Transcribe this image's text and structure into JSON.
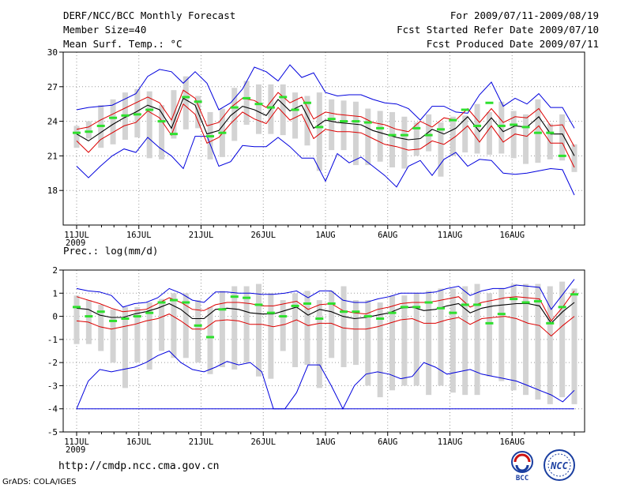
{
  "header": {
    "title": "DERF/NCC/BCC Monthly Forecast",
    "member_size": "Member Size=40",
    "variable": "Mean Surf. Temp.: °C",
    "period": "For 2009/07/11-2009/08/19",
    "started": "Fcst Started Refer Date 2009/07/10",
    "produced": "Fcst Produced Date 2009/07/11"
  },
  "footer": {
    "url": "http://cmdp.ncc.cma.gov.cn",
    "grads": "GrADS: COLA/IGES",
    "logo_left_text": "BCC",
    "logo_right_text": "NCC"
  },
  "colors": {
    "box": "#d3d3d3",
    "observed": "#2ee02e",
    "mean": "#000000",
    "spread": "#dd0000",
    "extreme": "#0000dd",
    "grid": "#9a9a9a"
  },
  "chart_data": [
    {
      "type": "line",
      "title": "Mean Surf. Temp.: °C",
      "x_labels": [
        "11JUL",
        "16JUL",
        "21JUL",
        "26JUL",
        "1AUG",
        "6AUG",
        "11AUG",
        "16AUG"
      ],
      "year_label": "2009",
      "ylim": [
        15,
        30
      ],
      "yticks": [
        18,
        21,
        24,
        27,
        30
      ],
      "days": 40,
      "series": [
        {
          "name": "max",
          "values": [
            25.0,
            25.2,
            25.3,
            25.4,
            25.9,
            26.4,
            27.9,
            28.5,
            28.3,
            27.3,
            28.3,
            27.3,
            25.0,
            25.6,
            26.8,
            28.7,
            28.3,
            27.5,
            28.9,
            27.8,
            28.2,
            26.5,
            26.2,
            26.3,
            26.3,
            25.9,
            25.6,
            25.5,
            25.1,
            24.1,
            25.3,
            25.3,
            24.8,
            24.7,
            26.3,
            27.4,
            25.3,
            26.0,
            25.5,
            26.4,
            25.2,
            25.2,
            23.4
          ]
        },
        {
          "name": "upper",
          "values": [
            23.3,
            23.5,
            24.1,
            24.6,
            25.1,
            25.6,
            26.1,
            25.6,
            24.1,
            26.7,
            26.0,
            23.6,
            23.9,
            25.2,
            26.0,
            25.8,
            25.2,
            26.5,
            25.6,
            26.1,
            24.2,
            24.8,
            24.6,
            24.5,
            24.4,
            23.9,
            23.7,
            23.3,
            23.1,
            24.0,
            23.5,
            24.3,
            24.1,
            25.1,
            23.9,
            25.1,
            23.9,
            24.4,
            24.3,
            25.1,
            23.6,
            23.7,
            21.8
          ]
        },
        {
          "name": "mean",
          "values": [
            22.9,
            22.3,
            23.0,
            23.7,
            24.3,
            24.8,
            25.4,
            25.0,
            23.4,
            26.0,
            25.4,
            22.9,
            23.2,
            24.5,
            25.3,
            25.0,
            24.5,
            25.9,
            24.9,
            25.4,
            23.4,
            24.1,
            23.9,
            23.8,
            23.7,
            23.2,
            22.9,
            22.6,
            22.4,
            22.5,
            23.3,
            22.9,
            23.4,
            24.4,
            23.1,
            24.3,
            23.1,
            23.6,
            23.5,
            24.4,
            22.9,
            22.9,
            21.0
          ]
        },
        {
          "name": "lower",
          "values": [
            22.3,
            21.3,
            22.4,
            23.0,
            23.6,
            23.9,
            24.9,
            24.3,
            22.8,
            25.5,
            24.6,
            22.1,
            22.6,
            23.8,
            24.8,
            24.2,
            23.8,
            25.2,
            24.1,
            24.6,
            22.5,
            23.3,
            23.1,
            23.1,
            23.0,
            22.5,
            22.0,
            21.8,
            21.5,
            21.6,
            22.3,
            22.0,
            22.7,
            23.6,
            22.2,
            23.6,
            22.2,
            22.9,
            22.7,
            23.6,
            22.1,
            22.1,
            20.0
          ]
        },
        {
          "name": "min",
          "values": [
            20.1,
            19.1,
            20.1,
            21.0,
            21.6,
            21.3,
            22.6,
            21.7,
            21.0,
            19.9,
            22.7,
            22.7,
            20.1,
            20.5,
            21.9,
            21.8,
            21.8,
            22.6,
            21.8,
            20.8,
            20.8,
            18.8,
            21.2,
            20.4,
            20.9,
            20.1,
            19.3,
            18.3,
            20.1,
            20.6,
            19.3,
            20.7,
            21.3,
            20.1,
            20.7,
            20.6,
            19.5,
            19.4,
            19.5,
            19.7,
            19.9,
            19.8,
            17.6
          ]
        },
        {
          "name": "observed",
          "values": [
            23.0,
            23.1,
            23.6,
            24.3,
            24.5,
            24.6,
            25.0,
            24.0,
            22.9,
            26.1,
            25.7,
            22.7,
            23.0,
            25.2,
            26.0,
            25.5,
            25.2,
            26.1,
            25.0,
            25.6,
            23.5,
            24.2,
            24.0,
            24.0,
            23.9,
            23.4,
            22.8,
            22.8,
            23.4,
            22.8,
            23.3,
            24.1,
            25.0,
            23.6,
            25.6,
            23.6,
            23.7,
            23.5,
            23.0,
            23.0,
            21.0
          ]
        },
        {
          "name": "box_top",
          "values": [
            23.6,
            24.0,
            25.4,
            25.9,
            26.5,
            26.8,
            26.6,
            25.4,
            26.7,
            27.9,
            26.2,
            24.8,
            25.1,
            26.9,
            27.5,
            27.2,
            27.2,
            27.2,
            26.5,
            26.2,
            26.5,
            25.9,
            25.8,
            25.7,
            25.1,
            24.9,
            24.8,
            24.4,
            23.9,
            24.6,
            23.9,
            24.4,
            24.5,
            25.5,
            24.8,
            25.7,
            24.9,
            24.6,
            25.9,
            23.8,
            24.6,
            22.0
          ]
        },
        {
          "name": "box_bottom",
          "values": [
            21.7,
            22.5,
            21.7,
            22.0,
            22.4,
            22.6,
            20.8,
            20.7,
            22.5,
            23.3,
            23.4,
            20.7,
            20.9,
            22.3,
            23.7,
            22.9,
            22.9,
            22.8,
            22.5,
            21.9,
            19.7,
            21.5,
            21.5,
            20.2,
            20.2,
            20.5,
            20.0,
            19.9,
            21.0,
            21.4,
            19.2,
            21.0,
            21.3,
            21.2,
            21.1,
            21.2,
            20.8,
            20.3,
            20.4,
            20.7,
            20.6,
            19.6
          ]
        }
      ]
    },
    {
      "type": "line",
      "title": "Prec.: log(mm/d)",
      "x_labels": [
        "11JUL",
        "16JUL",
        "21JUL",
        "26JUL",
        "1AUG",
        "6AUG",
        "11AUG",
        "16AUG"
      ],
      "year_label": "2009",
      "ylim": [
        -5,
        2
      ],
      "yticks": [
        -5,
        -4,
        -3,
        -2,
        -1,
        0,
        1,
        2
      ],
      "days": 40,
      "series": [
        {
          "name": "max",
          "values": [
            1.2,
            1.1,
            1.05,
            0.9,
            0.4,
            0.55,
            0.6,
            0.8,
            1.2,
            1.0,
            0.7,
            0.6,
            1.05,
            1.05,
            1.0,
            1.0,
            0.95,
            0.95,
            1.0,
            1.1,
            0.8,
            1.1,
            1.1,
            0.7,
            0.6,
            0.6,
            0.75,
            0.85,
            1.0,
            1.0,
            1.0,
            1.05,
            1.2,
            1.3,
            0.9,
            1.1,
            1.2,
            1.2,
            1.35,
            1.3,
            1.25,
            0.3,
            0.95,
            1.6
          ]
        },
        {
          "name": "upper",
          "values": [
            0.85,
            0.7,
            0.55,
            0.35,
            0.2,
            0.25,
            0.3,
            0.55,
            0.8,
            0.6,
            0.3,
            0.25,
            0.5,
            0.6,
            0.6,
            0.55,
            0.45,
            0.45,
            0.55,
            0.65,
            0.3,
            0.5,
            0.55,
            0.25,
            0.15,
            0.1,
            0.3,
            0.4,
            0.55,
            0.6,
            0.6,
            0.65,
            0.75,
            0.85,
            0.4,
            0.6,
            0.7,
            0.8,
            0.85,
            0.8,
            0.75,
            -0.2,
            0.4,
            1.1
          ]
        },
        {
          "name": "mean",
          "values": [
            0.35,
            0.3,
            0.05,
            -0.05,
            -0.05,
            0.1,
            0.2,
            0.35,
            0.55,
            0.3,
            -0.1,
            -0.1,
            0.3,
            0.35,
            0.3,
            0.15,
            0.1,
            0.1,
            0.25,
            0.4,
            0.05,
            0.3,
            0.2,
            0.0,
            -0.1,
            -0.05,
            0.05,
            0.15,
            0.35,
            0.4,
            0.25,
            0.3,
            0.45,
            0.55,
            0.15,
            0.35,
            0.45,
            0.5,
            0.55,
            0.55,
            0.45,
            -0.3,
            0.2,
            0.6
          ]
        },
        {
          "name": "lower",
          "values": [
            -0.2,
            -0.25,
            -0.45,
            -0.55,
            -0.45,
            -0.35,
            -0.2,
            -0.1,
            0.1,
            -0.2,
            -0.55,
            -0.55,
            -0.2,
            -0.15,
            -0.2,
            -0.35,
            -0.35,
            -0.45,
            -0.35,
            -0.15,
            -0.4,
            -0.3,
            -0.3,
            -0.5,
            -0.55,
            -0.55,
            -0.45,
            -0.3,
            -0.15,
            -0.1,
            -0.3,
            -0.3,
            -0.15,
            -0.05,
            -0.35,
            -0.1,
            -0.05,
            0.0,
            -0.1,
            -0.3,
            -0.4,
            -0.85,
            -0.4,
            0.0
          ]
        },
        {
          "name": "min",
          "values": [
            -4.0,
            -2.8,
            -2.3,
            -2.4,
            -2.3,
            -2.2,
            -2.0,
            -1.7,
            -1.5,
            -2.0,
            -2.3,
            -2.4,
            -2.2,
            -1.95,
            -2.1,
            -2.0,
            -2.4,
            -4.0,
            -4.0,
            -3.3,
            -2.1,
            -2.1,
            -3.0,
            -4.0,
            -3.0,
            -2.5,
            -2.4,
            -2.5,
            -2.7,
            -2.6,
            -2.0,
            -2.2,
            -2.5,
            -2.4,
            -2.3,
            -2.5,
            -2.6,
            -2.7,
            -2.8,
            -3.0,
            -3.2,
            -3.4,
            -3.7,
            -3.2
          ]
        },
        {
          "name": "observed",
          "values": [
            0.4,
            0.0,
            0.2,
            -0.2,
            -0.1,
            0.0,
            0.15,
            0.6,
            0.7,
            0.6,
            -0.4,
            -0.9,
            0.3,
            0.85,
            0.8,
            0.5,
            0.15,
            0.0,
            0.45,
            0.55,
            -0.1,
            0.55,
            0.2,
            0.2,
            0.0,
            -0.1,
            0.15,
            0.4,
            0.4,
            0.6,
            0.35,
            0.15,
            0.5,
            0.5,
            -0.3,
            0.1,
            0.75,
            0.6,
            0.65,
            -0.3,
            0.4,
            0.95
          ]
        },
        {
          "name": "box_top",
          "values": [
            0.9,
            0.7,
            0.5,
            0.3,
            0.4,
            0.4,
            0.6,
            0.75,
            1.0,
            1.0,
            0.7,
            0.4,
            1.1,
            1.3,
            1.3,
            1.4,
            1.0,
            0.7,
            1.0,
            1.1,
            0.7,
            1.1,
            1.3,
            0.7,
            0.7,
            0.6,
            0.9,
            0.9,
            1.0,
            1.1,
            1.2,
            1.2,
            1.3,
            1.4,
            1.0,
            1.2,
            1.4,
            1.4,
            1.4,
            1.3,
            1.5,
            1.2
          ]
        },
        {
          "name": "box_bottom",
          "values": [
            -1.2,
            -1.2,
            -1.5,
            -2.0,
            -3.1,
            -2.0,
            -2.3,
            -1.5,
            -1.8,
            -1.8,
            -2.0,
            -2.5,
            -2.2,
            -2.3,
            -2.0,
            -2.6,
            -2.7,
            -1.5,
            -2.2,
            -2.1,
            -3.1,
            -1.8,
            -2.2,
            -2.1,
            -3.0,
            -3.5,
            -3.2,
            -3.0,
            -3.0,
            -3.4,
            -3.0,
            -3.3,
            -3.4,
            -3.4,
            -2.6,
            -2.8,
            -3.2,
            -3.4,
            -3.6,
            -3.8,
            -3.5,
            -3.8
          ]
        }
      ]
    }
  ]
}
